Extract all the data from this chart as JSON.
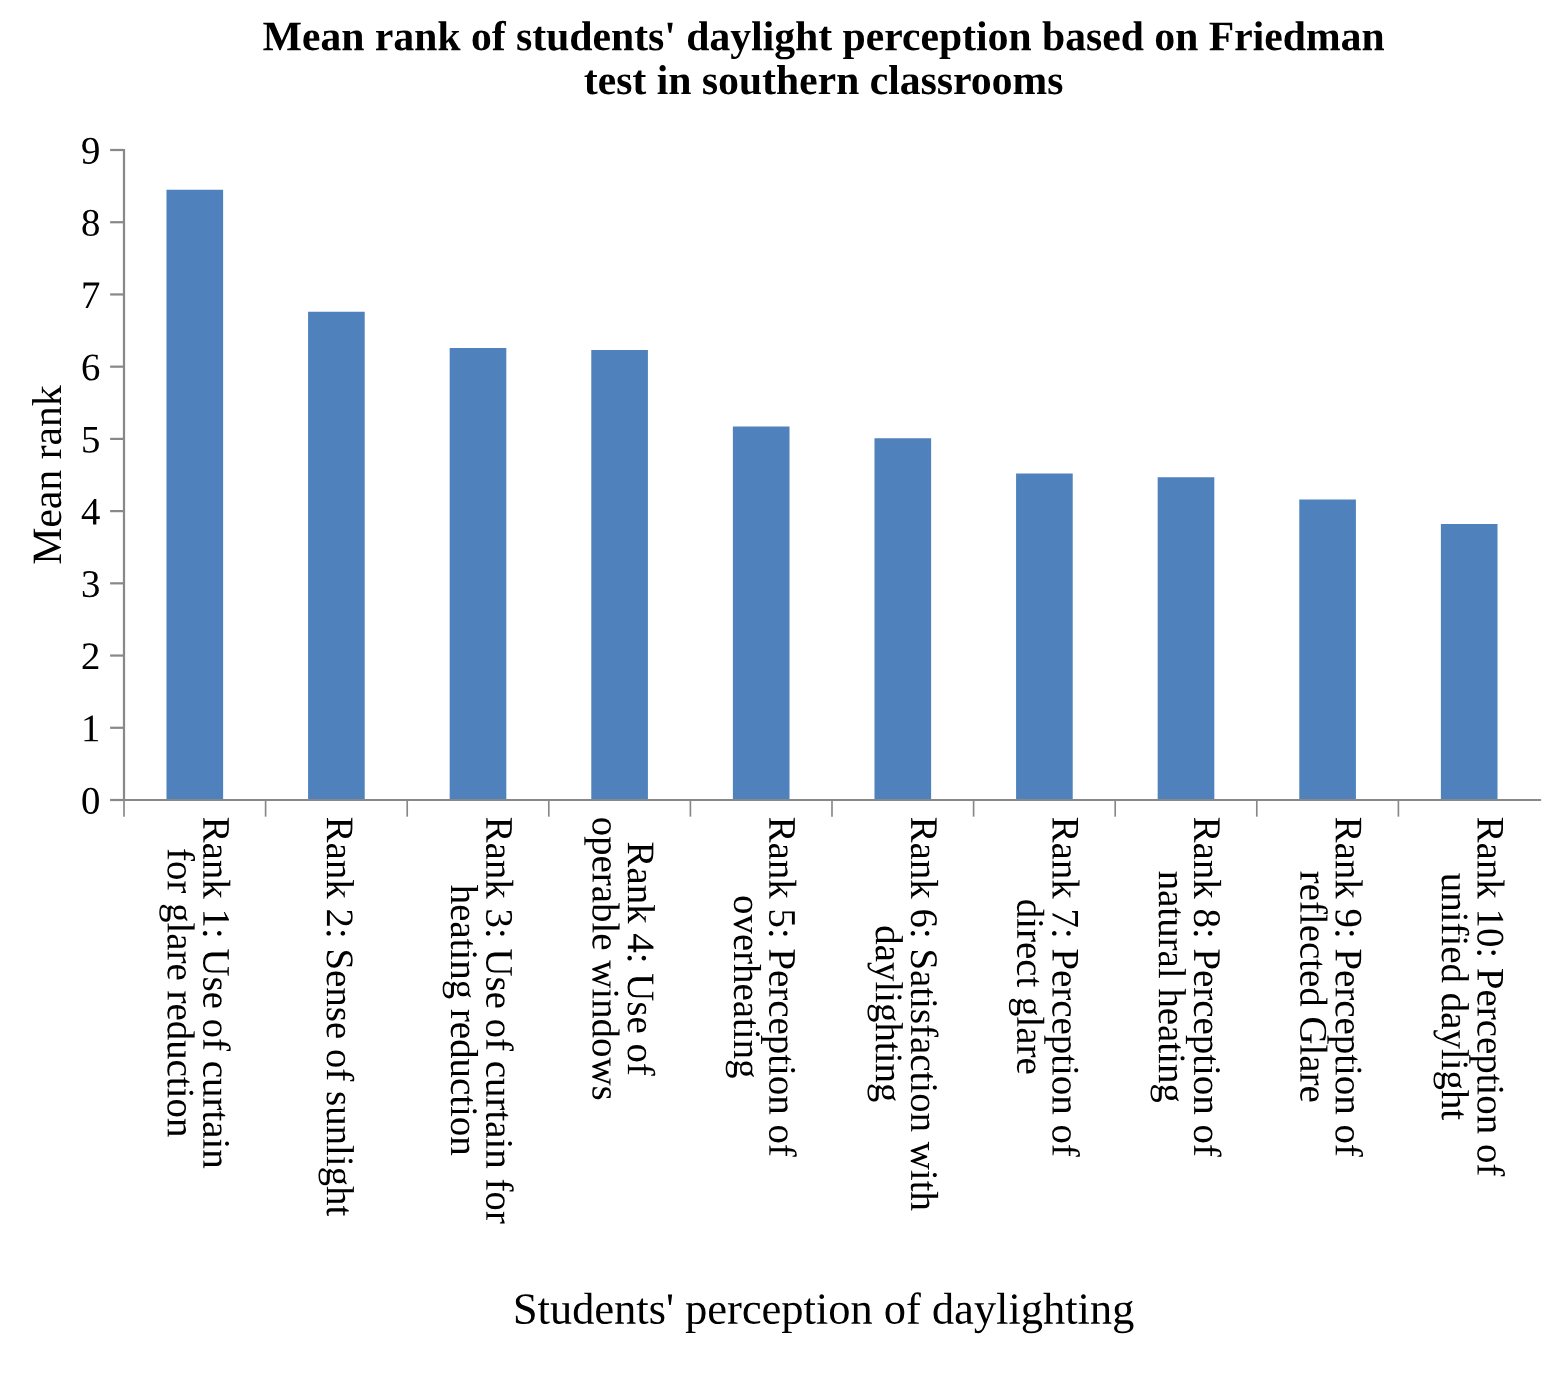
{
  "chart_data": {
    "type": "bar",
    "title": "Mean rank of students' daylight perception based on Friedman\ntest in southern classrooms",
    "xlabel": "Students' perception of daylighting",
    "ylabel": "Mean rank",
    "categories": [
      "Rank 1: Use of curtain\nfor glare reduction",
      "Rank 2: Sense of sunlight",
      "Rank 3: Use of curtain for\nheating reduction",
      "Rank 4: Use of\noperable windows",
      "Rank 5: Perception of\noverheating",
      "Rank 6: Satisfaction with\ndaylighting",
      "Rank 7: Perception of\ndirect glare",
      "Rank 8: Perception of\nnatural heating",
      "Rank 9: Perception of\nreflected Glare",
      "Rank 10: Perception of\nunified daylight"
    ],
    "values": [
      8.45,
      6.76,
      6.26,
      6.23,
      5.17,
      5.01,
      4.52,
      4.47,
      4.16,
      3.82
    ],
    "color": "#4f81bd",
    "ylim": [
      0,
      9
    ],
    "yticks": [
      0,
      1,
      2,
      3,
      4,
      5,
      6,
      7,
      8,
      9
    ],
    "grid": false,
    "legend": false
  }
}
